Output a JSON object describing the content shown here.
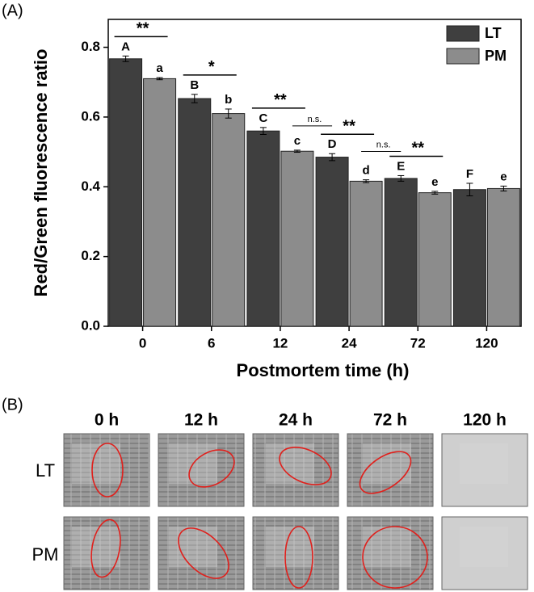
{
  "chart_data": {
    "type": "bar",
    "panel_label": "(A)",
    "y_label": "Red/Green fluorescence ratio",
    "x_label": "Postmortem time (h)",
    "categories": [
      "0",
      "6",
      "12",
      "24",
      "72",
      "120"
    ],
    "series": [
      {
        "name": "LT",
        "color": "#3f3f3f",
        "values": [
          0.767,
          0.653,
          0.56,
          0.485,
          0.424,
          0.392
        ],
        "errors": [
          0.008,
          0.012,
          0.01,
          0.01,
          0.008,
          0.018
        ],
        "letters": [
          "A",
          "B",
          "C",
          "D",
          "E",
          "F"
        ]
      },
      {
        "name": "PM",
        "color": "#8c8c8c",
        "values": [
          0.71,
          0.61,
          0.502,
          0.416,
          0.383,
          0.395
        ],
        "errors": [
          0.003,
          0.013,
          0.003,
          0.004,
          0.004,
          0.007
        ],
        "letters": [
          "a",
          "b",
          "c",
          "d",
          "e",
          "e"
        ]
      }
    ],
    "significance": [
      "**",
      "*",
      "**",
      "**",
      "**"
    ],
    "between_significance": [
      "n.s.",
      "n.s."
    ],
    "ylim": [
      0,
      0.88
    ],
    "yticks": [
      {
        "value": 0,
        "label": "0.0"
      },
      0.2,
      0.4,
      0.6,
      0.8
    ],
    "legend": "upper right"
  },
  "panel_b": {
    "panel_label": "(B)",
    "columns": [
      "0 h",
      "12 h",
      "24 h",
      "72 h",
      "120 h"
    ],
    "rows": [
      "LT",
      "PM"
    ]
  }
}
